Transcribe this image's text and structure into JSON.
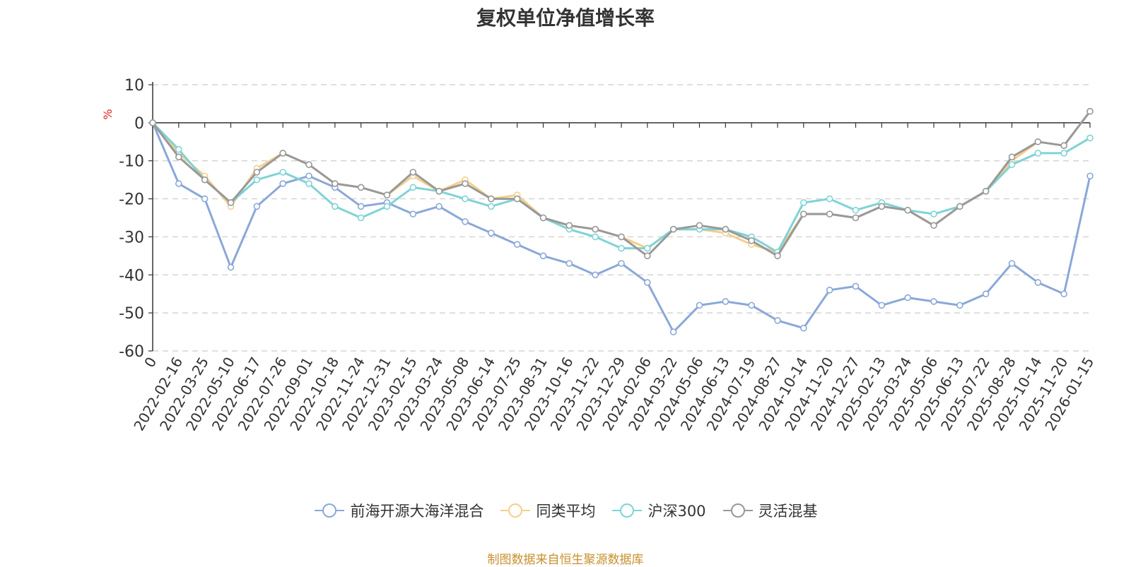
{
  "chart_data": {
    "type": "line",
    "title": "复权单位净值增长率",
    "ylabel": "%",
    "ylim": [
      -60,
      10
    ],
    "yticks": [
      10,
      0,
      -10,
      -20,
      -30,
      -40,
      -50,
      -60
    ],
    "xlabels": [
      "0",
      "2022-02-16",
      "2022-03-25",
      "2022-05-10",
      "2022-06-17",
      "2022-07-26",
      "2022-09-01",
      "2022-10-18",
      "2022-11-24",
      "2022-12-31",
      "2023-02-15",
      "2023-03-24",
      "2023-05-08",
      "2023-06-14",
      "2023-07-25",
      "2023-08-31",
      "2023-10-16",
      "2023-11-22",
      "2023-12-29",
      "2024-02-06",
      "2024-03-22",
      "2024-05-06",
      "2024-06-13",
      "2024-07-19",
      "2024-08-27",
      "2024-10-14",
      "2024-11-20",
      "2024-12-27",
      "2025-02-13",
      "2025-03-24",
      "2025-05-06",
      "2025-06-13",
      "2025-07-22",
      "2025-08-28",
      "2025-10-14",
      "2025-11-20",
      "2026-01-15"
    ],
    "series": [
      {
        "name": "前海开源大海洋混合",
        "color": "#8aa8d8",
        "values": [
          0,
          -16,
          -20,
          -38,
          -22,
          -16,
          -14,
          -17,
          -22,
          -21,
          -24,
          -22,
          -26,
          -29,
          -32,
          -35,
          -37,
          -40,
          -37,
          -42,
          -55,
          -48,
          -47,
          -48,
          -52,
          -54,
          -44,
          -43,
          -48,
          -46,
          -47,
          -48,
          -45,
          -37,
          -42,
          -45,
          -14
        ]
      },
      {
        "name": "同类平均",
        "color": "#f5cf8a",
        "values": [
          0,
          -8,
          -14,
          -22,
          -12,
          -8,
          -11,
          -16,
          -17,
          -19,
          -14,
          -18,
          -15,
          -20,
          -19,
          -25,
          -27,
          -28,
          -30,
          -33,
          -28,
          -28,
          -29,
          -32,
          -34,
          -24,
          -24,
          -25,
          -22,
          -23,
          -27,
          -22,
          -18,
          -10,
          -5,
          -6,
          3
        ]
      },
      {
        "name": "沪深300",
        "color": "#7fd3d6",
        "values": [
          0,
          -7,
          -15,
          -21,
          -15,
          -13,
          -16,
          -22,
          -25,
          -22,
          -17,
          -18,
          -20,
          -22,
          -20,
          -25,
          -28,
          -30,
          -33,
          -33,
          -28,
          -28,
          -28,
          -30,
          -34,
          -21,
          -20,
          -23,
          -21,
          -23,
          -24,
          -22,
          -18,
          -11,
          -8,
          -8,
          -4
        ]
      },
      {
        "name": "灵活混基",
        "color": "#999999",
        "values": [
          0,
          -9,
          -15,
          -21,
          -13,
          -8,
          -11,
          -16,
          -17,
          -19,
          -13,
          -18,
          -16,
          -20,
          -20,
          -25,
          -27,
          -28,
          -30,
          -35,
          -28,
          -27,
          -28,
          -31,
          -35,
          -24,
          -24,
          -25,
          -22,
          -23,
          -27,
          -22,
          -18,
          -9,
          -5,
          -6,
          3
        ]
      }
    ]
  },
  "legend": {
    "items": [
      {
        "label": "前海开源大海洋混合",
        "color": "#8aa8d8"
      },
      {
        "label": "同类平均",
        "color": "#f5cf8a"
      },
      {
        "label": "沪深300",
        "color": "#7fd3d6"
      },
      {
        "label": "灵活混基",
        "color": "#999999"
      }
    ]
  },
  "footer": {
    "source": "制图数据来自恒生聚源数据库"
  },
  "colors": {
    "axis": "#333333",
    "grid": "#cccccc",
    "unit": "#dd2222",
    "source": "#c8902c"
  }
}
